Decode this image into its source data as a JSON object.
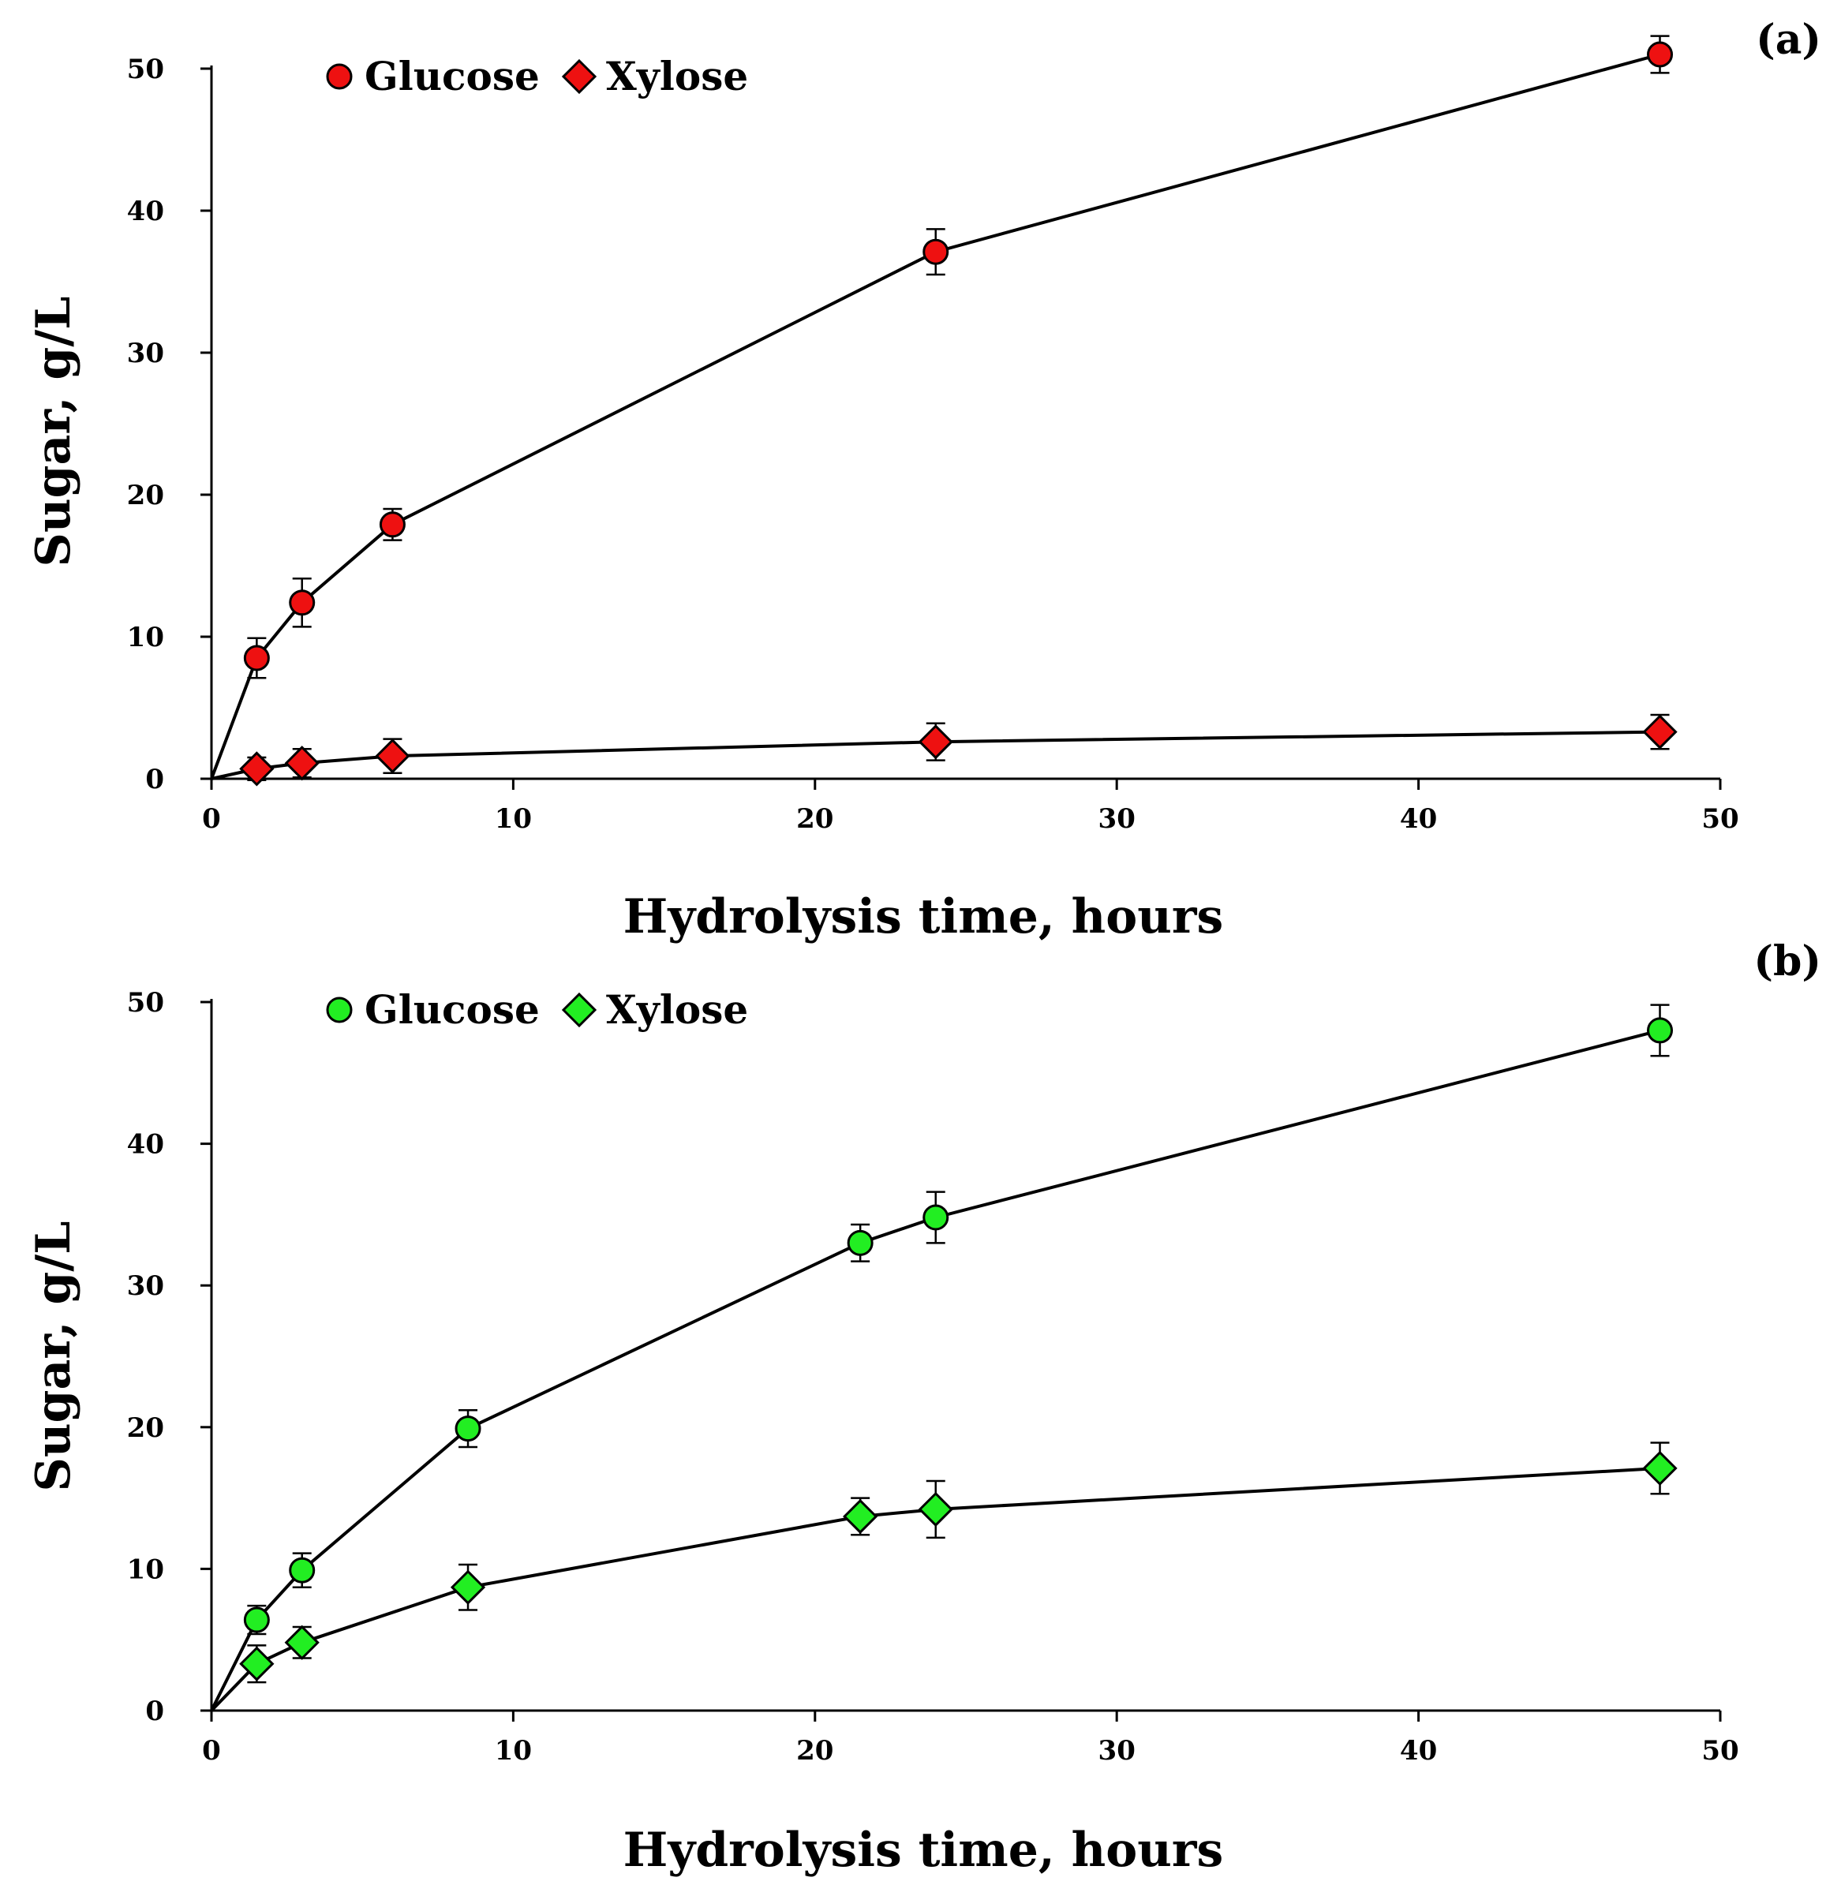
{
  "chart_data": [
    {
      "type": "line",
      "panel_label": "(a)",
      "xlabel": "Hydrolysis time, hours",
      "ylabel": "Sugar, g/L",
      "xlim": [
        0,
        50
      ],
      "ylim": [
        0,
        50
      ],
      "x_ticks": [
        "0",
        "10",
        "20",
        "30",
        "40",
        "50"
      ],
      "y_ticks": [
        "0",
        "10",
        "20",
        "30",
        "40",
        "50"
      ],
      "legend_position": "top-left",
      "series": [
        {
          "name": "Glucose",
          "marker": "circle",
          "color": "#ee1111",
          "x": [
            0,
            1.5,
            3,
            6,
            24,
            48
          ],
          "values": [
            0,
            8.5,
            12.4,
            17.9,
            37.1,
            51.0
          ],
          "errors": [
            0,
            1.4,
            1.7,
            1.1,
            1.6,
            1.3
          ]
        },
        {
          "name": "Xylose",
          "marker": "diamond",
          "color": "#ee1111",
          "x": [
            0,
            1.5,
            3,
            6,
            24,
            48
          ],
          "values": [
            0,
            0.7,
            1.1,
            1.6,
            2.6,
            3.3
          ],
          "errors": [
            0,
            0.8,
            1.0,
            1.2,
            1.3,
            1.2
          ]
        }
      ]
    },
    {
      "type": "line",
      "panel_label": "(b)",
      "xlabel": "Hydrolysis time, hours",
      "ylabel": "Sugar, g/L",
      "xlim": [
        0,
        50
      ],
      "ylim": [
        0,
        50
      ],
      "x_ticks": [
        "0",
        "10",
        "20",
        "30",
        "40",
        "50"
      ],
      "y_ticks": [
        "0",
        "10",
        "20",
        "30",
        "40",
        "50"
      ],
      "legend_position": "top-left",
      "series": [
        {
          "name": "Glucose",
          "marker": "circle",
          "color": "#22ee22",
          "x": [
            0,
            1.5,
            3,
            8.5,
            21.5,
            24,
            48
          ],
          "values": [
            0,
            6.4,
            9.9,
            19.9,
            33.0,
            34.8,
            48.0
          ],
          "errors": [
            0,
            1.0,
            1.2,
            1.3,
            1.3,
            1.8,
            1.8
          ]
        },
        {
          "name": "Xylose",
          "marker": "diamond",
          "color": "#22ee22",
          "x": [
            0,
            1.5,
            3,
            8.5,
            21.5,
            24,
            48
          ],
          "values": [
            0,
            3.3,
            4.8,
            8.7,
            13.7,
            14.2,
            17.1
          ],
          "errors": [
            0,
            1.3,
            1.1,
            1.6,
            1.3,
            2.0,
            1.8
          ]
        }
      ]
    }
  ]
}
